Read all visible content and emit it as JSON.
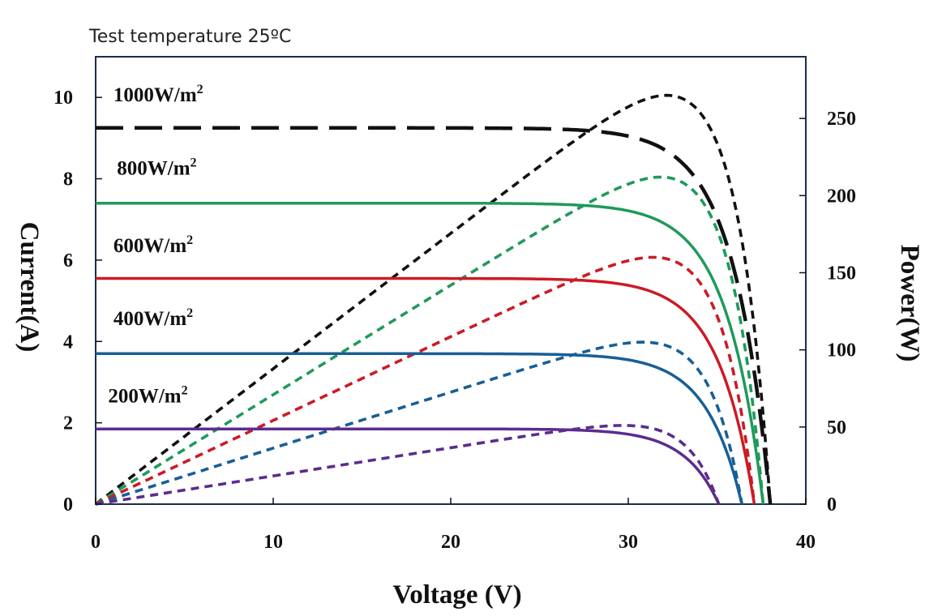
{
  "chart_data": {
    "type": "line",
    "title": "Test  temperature 25ºC",
    "xlabel": "Voltage (V)",
    "ylabel": "Current(A)",
    "y2label": "Power(W)",
    "xlim": [
      0,
      40
    ],
    "ylim": [
      0,
      11
    ],
    "y2lim": [
      0,
      290
    ],
    "x_ticks": [
      "0",
      "10",
      "20",
      "30",
      "40"
    ],
    "y_ticks": [
      "0",
      "2",
      "4",
      "6",
      "8",
      "10"
    ],
    "y2_ticks": [
      "0",
      "50",
      "100",
      "150",
      "200",
      "250"
    ],
    "grid": false,
    "legend": "inline labels at left",
    "series": [
      {
        "name": "1000W/m2",
        "label_main": "1000W/m",
        "label_sup": "2",
        "color": "#111111",
        "isc": 9.25,
        "voc": 38.0,
        "vmp": 30.5,
        "pmax": 265,
        "current_style": "long-dash",
        "power_style": "short-dash",
        "label_v": 1.0,
        "label_i": 9.9
      },
      {
        "name": "800W/m2",
        "label_main": "800W/m",
        "label_sup": "2",
        "color": "#1e9a5a",
        "isc": 7.4,
        "voc": 37.6,
        "vmp": 30.8,
        "pmax": 212,
        "current_style": "solid",
        "power_style": "short-dash",
        "label_v": 1.2,
        "label_i": 8.1
      },
      {
        "name": "600W/m2",
        "label_main": "600W/m",
        "label_sup": "2",
        "color": "#cc1b25",
        "isc": 5.55,
        "voc": 37.1,
        "vmp": 30.6,
        "pmax": 160,
        "current_style": "solid",
        "power_style": "short-dash",
        "label_v": 1.0,
        "label_i": 6.2
      },
      {
        "name": "400W/m2",
        "label_main": "400W/m",
        "label_sup": "2",
        "color": "#175f96",
        "isc": 3.7,
        "voc": 36.4,
        "vmp": 30.2,
        "pmax": 105,
        "current_style": "solid",
        "power_style": "short-dash",
        "label_v": 1.0,
        "label_i": 4.4
      },
      {
        "name": "200W/m2",
        "label_main": "200W/m",
        "label_sup": "2",
        "color": "#5b2d8c",
        "isc": 1.85,
        "voc": 35.1,
        "vmp": 30.0,
        "pmax": 51,
        "current_style": "solid",
        "power_style": "short-dash",
        "label_v": 0.7,
        "label_i": 2.5
      }
    ]
  }
}
